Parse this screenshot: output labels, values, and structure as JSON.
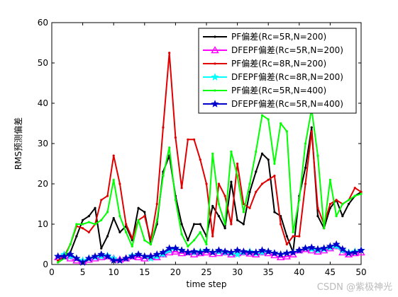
{
  "chart_data": {
    "type": "line",
    "title": "",
    "xlabel": "time step",
    "ylabel": "RMS预测偏差",
    "xlim": [
      0,
      50
    ],
    "ylim": [
      0,
      60
    ],
    "xticks": [
      0,
      5,
      10,
      15,
      20,
      25,
      30,
      35,
      40,
      45,
      50
    ],
    "yticks": [
      0,
      10,
      20,
      30,
      40,
      50,
      60
    ],
    "grid": false,
    "legend_position": "top-right",
    "series": [
      {
        "name": "PF偏差(Rc=5R,N=200)",
        "color": "#000000",
        "marker": "dot",
        "x": [
          1,
          2,
          3,
          4,
          5,
          6,
          7,
          8,
          9,
          10,
          11,
          12,
          13,
          14,
          15,
          16,
          17,
          18,
          19,
          20,
          21,
          22,
          23,
          24,
          25,
          26,
          27,
          28,
          29,
          30,
          31,
          32,
          33,
          34,
          35,
          36,
          37,
          38,
          39,
          40,
          41,
          42,
          43,
          44,
          45,
          46,
          47,
          48,
          49,
          50
        ],
        "values": [
          1,
          2,
          3,
          7,
          11,
          12,
          14,
          4,
          7,
          11.5,
          8,
          9.5,
          6,
          14,
          13,
          5,
          10,
          23,
          27,
          17,
          10,
          6,
          10,
          10,
          7,
          14.5,
          12,
          9,
          20.5,
          11,
          10,
          18,
          23,
          27.5,
          26,
          13,
          12,
          7,
          3,
          17,
          24,
          34,
          12,
          9,
          14,
          16,
          12,
          15,
          17,
          18
        ]
      },
      {
        "name": "DFEPF偏差(Rc=5R,N=200)",
        "color": "#ff00ff",
        "marker": "triangle",
        "x": [
          1,
          2,
          3,
          4,
          5,
          6,
          7,
          8,
          9,
          10,
          11,
          12,
          13,
          14,
          15,
          16,
          17,
          18,
          19,
          20,
          21,
          22,
          23,
          24,
          25,
          26,
          27,
          28,
          29,
          30,
          31,
          32,
          33,
          34,
          35,
          36,
          37,
          38,
          39,
          40,
          41,
          42,
          43,
          44,
          45,
          46,
          47,
          48,
          49,
          50
        ],
        "values": [
          1.8,
          2,
          1.5,
          1,
          0.8,
          1.2,
          1.5,
          1.8,
          2,
          1.5,
          1.2,
          1.5,
          2,
          1.8,
          1.5,
          2,
          1.8,
          2.5,
          3,
          3.2,
          2.8,
          3,
          2.5,
          2.8,
          3,
          2.6,
          2.8,
          3,
          2.5,
          2.8,
          3,
          2.7,
          2.5,
          3,
          2.8,
          2.3,
          1.8,
          2,
          2.5,
          3.5,
          3.8,
          3.5,
          3.2,
          3.5,
          4,
          4.5,
          3,
          2.5,
          2.8,
          3
        ]
      },
      {
        "name": "PF偏差(Rc=8R,N=200)",
        "color": "#e00000",
        "marker": "dot",
        "x": [
          1,
          2,
          3,
          4,
          5,
          6,
          7,
          8,
          9,
          10,
          11,
          12,
          13,
          14,
          15,
          16,
          17,
          18,
          19,
          20,
          21,
          22,
          23,
          24,
          25,
          26,
          27,
          28,
          29,
          30,
          31,
          32,
          33,
          34,
          35,
          36,
          37,
          38,
          39,
          40,
          41,
          42,
          43,
          44,
          45,
          46,
          47,
          48,
          49,
          50
        ],
        "values": [
          1,
          2,
          5,
          9.5,
          9,
          8,
          10,
          16,
          17,
          27,
          20,
          10,
          6.5,
          11,
          12,
          6,
          15,
          34,
          52.5,
          31.5,
          19,
          31,
          31,
          26,
          20,
          7,
          20,
          17,
          10,
          25,
          15,
          14,
          18,
          20,
          21,
          22,
          10,
          5,
          7,
          7,
          20,
          33,
          14,
          10,
          15,
          16,
          15,
          16,
          19,
          18
        ]
      },
      {
        "name": "DFEPF偏差(Rc=8R,N=200)",
        "color": "#00ffff",
        "marker": "star",
        "x": [
          1,
          2,
          3,
          4,
          5,
          6,
          7,
          8,
          9,
          10,
          11,
          12,
          13,
          14,
          15,
          16,
          17,
          18,
          19,
          20,
          21,
          22,
          23,
          24,
          25,
          26,
          27,
          28,
          29,
          30,
          31,
          32,
          33,
          34,
          35,
          36,
          37,
          38,
          39,
          40,
          41,
          42,
          43,
          44,
          45,
          46,
          47,
          48,
          49,
          50
        ],
        "values": [
          2,
          2.5,
          2,
          1.5,
          1,
          1.5,
          1.8,
          2,
          2.2,
          1.5,
          1,
          1.5,
          2.2,
          2.5,
          2,
          1.5,
          2,
          2.5,
          3.5,
          4,
          3.5,
          3,
          3,
          3.2,
          3.5,
          3,
          3.2,
          3,
          2.8,
          2.5,
          3,
          3.2,
          2.8,
          3,
          3.2,
          2.8,
          2.5,
          2.8,
          3,
          3.5,
          4,
          3.8,
          3.5,
          3.8,
          4.2,
          4.5,
          3.5,
          3,
          3.2,
          3.5
        ]
      },
      {
        "name": "PF偏差(Rc=5R,N=400)",
        "color": "#00ff00",
        "marker": "dot",
        "x": [
          1,
          2,
          3,
          4,
          5,
          6,
          7,
          8,
          9,
          10,
          11,
          12,
          13,
          14,
          15,
          16,
          17,
          18,
          19,
          20,
          21,
          22,
          23,
          24,
          25,
          26,
          27,
          28,
          29,
          30,
          31,
          32,
          33,
          34,
          35,
          36,
          37,
          38,
          39,
          40,
          41,
          42,
          43,
          44,
          45,
          46,
          47,
          48,
          49,
          50
        ],
        "values": [
          0.5,
          1.5,
          5,
          10,
          10,
          10.5,
          10,
          11,
          13,
          21,
          12,
          8,
          4.5,
          11,
          6,
          5,
          11,
          22,
          29,
          16,
          7.5,
          4.5,
          6,
          8,
          5,
          27.5,
          15,
          10,
          28,
          22,
          13,
          20,
          28,
          37,
          36,
          25,
          35,
          33,
          8,
          16,
          30,
          38.5,
          27,
          9,
          21,
          12,
          15,
          16,
          17,
          17.5
        ]
      },
      {
        "name": "DFEPF偏差(Rc=5R,N=400)",
        "color": "#0000cc",
        "marker": "star",
        "x": [
          1,
          2,
          3,
          4,
          5,
          6,
          7,
          8,
          9,
          10,
          11,
          12,
          13,
          14,
          15,
          16,
          17,
          18,
          19,
          20,
          21,
          22,
          23,
          24,
          25,
          26,
          27,
          28,
          29,
          30,
          31,
          32,
          33,
          34,
          35,
          36,
          37,
          38,
          39,
          40,
          41,
          42,
          43,
          44,
          45,
          46,
          47,
          48,
          49,
          50
        ],
        "values": [
          2,
          2,
          2.5,
          1.5,
          0.5,
          1.5,
          2,
          2.5,
          2,
          1,
          1,
          1.5,
          2,
          2.5,
          2,
          2,
          2.5,
          3,
          4,
          4,
          3.5,
          3,
          3.2,
          3,
          3.5,
          3,
          3.5,
          3.2,
          3,
          3.5,
          3.2,
          3,
          3,
          3.5,
          3.2,
          2.8,
          2.5,
          2.8,
          3,
          3.5,
          4,
          4.2,
          3.8,
          4,
          4.5,
          5,
          3.8,
          2.8,
          3,
          3.5
        ]
      }
    ]
  },
  "watermark": "CSDN @紫极神光"
}
